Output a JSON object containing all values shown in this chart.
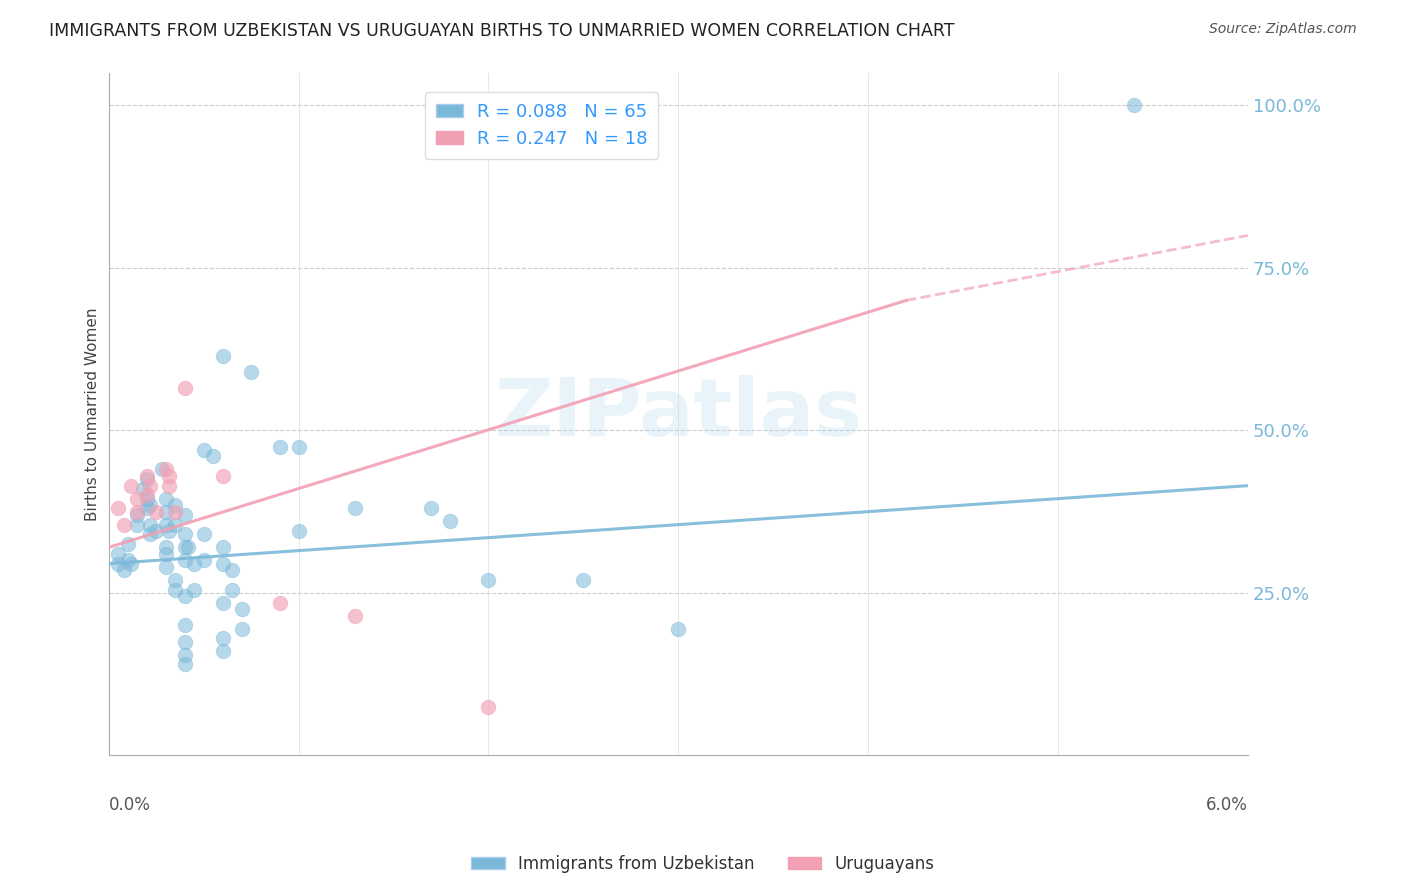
{
  "title": "IMMIGRANTS FROM UZBEKISTAN VS URUGUAYAN BIRTHS TO UNMARRIED WOMEN CORRELATION CHART",
  "source": "Source: ZipAtlas.com",
  "ylabel": "Births to Unmarried Women",
  "right_yticks": [
    "100.0%",
    "75.0%",
    "50.0%",
    "25.0%"
  ],
  "right_ytick_vals": [
    1.0,
    0.75,
    0.5,
    0.25
  ],
  "legend1_label": "R = 0.088   N = 65",
  "legend2_label": "R = 0.247   N = 18",
  "legend_bottom1": "Immigrants from Uzbekistan",
  "legend_bottom2": "Uruguayans",
  "blue_color": "#7ab8d9",
  "pink_color": "#f2a0b4",
  "watermark": "ZIPatlas",
  "blue_scatter": [
    [
      0.0005,
      0.295
    ],
    [
      0.0005,
      0.31
    ],
    [
      0.0008,
      0.285
    ],
    [
      0.001,
      0.3
    ],
    [
      0.001,
      0.325
    ],
    [
      0.0012,
      0.295
    ],
    [
      0.0015,
      0.355
    ],
    [
      0.0015,
      0.37
    ],
    [
      0.0018,
      0.41
    ],
    [
      0.002,
      0.425
    ],
    [
      0.002,
      0.395
    ],
    [
      0.002,
      0.38
    ],
    [
      0.0022,
      0.385
    ],
    [
      0.0022,
      0.355
    ],
    [
      0.0022,
      0.34
    ],
    [
      0.0025,
      0.345
    ],
    [
      0.0028,
      0.44
    ],
    [
      0.003,
      0.395
    ],
    [
      0.003,
      0.375
    ],
    [
      0.003,
      0.355
    ],
    [
      0.003,
      0.32
    ],
    [
      0.003,
      0.31
    ],
    [
      0.003,
      0.29
    ],
    [
      0.0032,
      0.345
    ],
    [
      0.0035,
      0.385
    ],
    [
      0.0035,
      0.355
    ],
    [
      0.0035,
      0.27
    ],
    [
      0.0035,
      0.255
    ],
    [
      0.004,
      0.37
    ],
    [
      0.004,
      0.34
    ],
    [
      0.004,
      0.32
    ],
    [
      0.004,
      0.3
    ],
    [
      0.004,
      0.245
    ],
    [
      0.004,
      0.2
    ],
    [
      0.004,
      0.175
    ],
    [
      0.004,
      0.155
    ],
    [
      0.004,
      0.14
    ],
    [
      0.0042,
      0.32
    ],
    [
      0.0045,
      0.295
    ],
    [
      0.0045,
      0.255
    ],
    [
      0.005,
      0.47
    ],
    [
      0.005,
      0.34
    ],
    [
      0.005,
      0.3
    ],
    [
      0.0055,
      0.46
    ],
    [
      0.006,
      0.615
    ],
    [
      0.006,
      0.32
    ],
    [
      0.006,
      0.295
    ],
    [
      0.006,
      0.235
    ],
    [
      0.006,
      0.18
    ],
    [
      0.006,
      0.16
    ],
    [
      0.0065,
      0.285
    ],
    [
      0.0065,
      0.255
    ],
    [
      0.007,
      0.225
    ],
    [
      0.007,
      0.195
    ],
    [
      0.0075,
      0.59
    ],
    [
      0.009,
      0.475
    ],
    [
      0.01,
      0.475
    ],
    [
      0.01,
      0.345
    ],
    [
      0.013,
      0.38
    ],
    [
      0.017,
      0.38
    ],
    [
      0.018,
      0.36
    ],
    [
      0.02,
      0.27
    ],
    [
      0.025,
      0.27
    ],
    [
      0.03,
      0.195
    ],
    [
      0.054,
      1.0
    ]
  ],
  "pink_scatter": [
    [
      0.0005,
      0.38
    ],
    [
      0.0008,
      0.355
    ],
    [
      0.0012,
      0.415
    ],
    [
      0.0015,
      0.395
    ],
    [
      0.0015,
      0.375
    ],
    [
      0.002,
      0.43
    ],
    [
      0.0022,
      0.415
    ],
    [
      0.002,
      0.4
    ],
    [
      0.0025,
      0.375
    ],
    [
      0.003,
      0.44
    ],
    [
      0.0032,
      0.43
    ],
    [
      0.0032,
      0.415
    ],
    [
      0.0035,
      0.375
    ],
    [
      0.004,
      0.565
    ],
    [
      0.006,
      0.43
    ],
    [
      0.009,
      0.235
    ],
    [
      0.013,
      0.215
    ],
    [
      0.02,
      0.075
    ]
  ],
  "xmin": 0.0,
  "xmax": 0.06,
  "ymin": 0.0,
  "ymax": 1.05,
  "blue_line": [
    0.0,
    0.295,
    0.06,
    0.415
  ],
  "pink_line_solid": [
    0.0,
    0.32,
    0.042,
    0.7
  ],
  "pink_line_dashed": [
    0.042,
    0.7,
    0.06,
    0.8
  ]
}
